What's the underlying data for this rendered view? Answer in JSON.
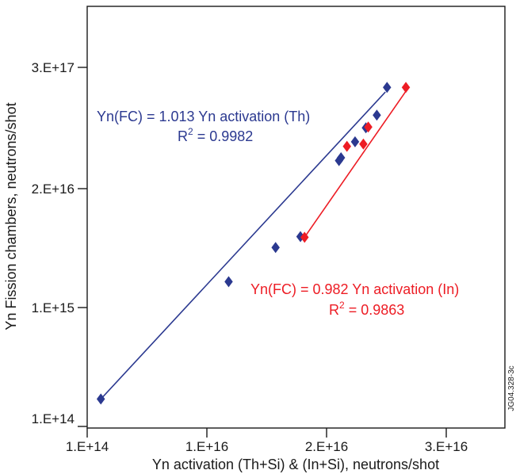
{
  "chart_data": {
    "type": "scatter",
    "x_scale": "log",
    "y_scale": "log",
    "xlabel": "Yn activation (Th+Si) & (In+Si), neutrons/shot",
    "ylabel": "Yn Fission chambers, neutrons/shot",
    "x_ticks": [
      "1.E+14",
      "1.E+16",
      "2.E+16",
      "3.E+16"
    ],
    "y_ticks": [
      "1.E+14",
      "1.E+15",
      "2.E+16",
      "3.E+17"
    ],
    "xlim": [
      "1.E+14",
      "1E+17"
    ],
    "ylim": [
      "1.E+14",
      "3E+18"
    ],
    "grid": false,
    "series": [
      {
        "color": "#2b3990",
        "x": [
          130000000000000.0,
          1520000000000000.0,
          3750000000000000.0,
          6050000000000000.0,
          1.27e+16,
          1.32e+16,
          1.73e+16,
          2.13e+16,
          2.63e+16,
          3.2e+16
        ],
        "y": [
          170000000000000.0,
          1650000000000000.0,
          3200000000000000.0,
          3950000000000000.0,
          1.72e+16,
          1.82e+16,
          2.48e+16,
          3.25e+16,
          4.15e+16,
          7.1e+16
        ],
        "fit": {
          "x": [
            130000000000000.0,
            3.1e+16
          ],
          "y": [
            170000000000000.0,
            6.5e+16
          ]
        }
      },
      {
        "color": "#ed1c24",
        "x": [
          6550000000000000.0,
          1.48e+16,
          2.03e+16,
          2.23e+16,
          4.6e+16
        ],
        "y": [
          3900000000000000.0,
          2.27e+16,
          2.37e+16,
          3.3e+16,
          7.1e+16
        ],
        "fit": {
          "x": [
            6550000000000000.0,
            4.6e+16
          ],
          "y": [
            3900000000000000.0,
            6.6e+16
          ]
        }
      }
    ],
    "annotations": [
      {
        "line1": "Yn(FC) = 1.013 Yn activation (Th)",
        "r_label": "R",
        "r_sup": "2",
        "r_value": " = 0.9982",
        "color": "#2b3990"
      },
      {
        "line1": "Yn(FC) = 0.982 Yn activation (In)",
        "r_label": "R",
        "r_sup": "2",
        "r_value": " = 0.9863",
        "color": "#ed1c24"
      }
    ]
  },
  "figure_id": "JG04.328-3c"
}
